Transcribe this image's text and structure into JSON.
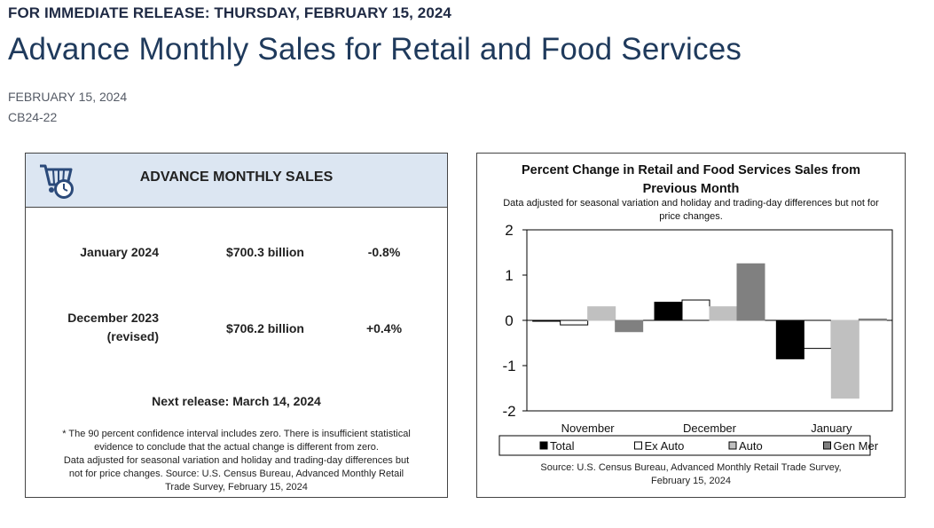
{
  "header": {
    "release_line": "FOR IMMEDIATE RELEASE: THURSDAY, FEBRUARY 15, 2024",
    "title": "Advance Monthly Sales for Retail and Food Services",
    "date": "FEBRUARY 15, 2024",
    "release_id": "CB24-22"
  },
  "sales_card": {
    "icon": "shopping-cart-clock-icon",
    "title": "ADVANCE MONTHLY SALES",
    "rows": [
      {
        "label_line1": "January 2024",
        "label_line2": "",
        "value": "$700.3 billion",
        "change": "-0.8%"
      },
      {
        "label_line1": "December 2023",
        "label_line2": "(revised)",
        "value": "$706.2 billion",
        "change": "+0.4%"
      }
    ],
    "next_release": "Next release: March 14, 2024",
    "footnote": [
      "* The 90 percent confidence interval includes zero. There is insufficient statistical",
      "evidence to conclude that the actual change is different from zero.",
      "Data adjusted for seasonal variation and holiday and trading-day differences but",
      "not for price changes. Source: U.S. Census Bureau, Advanced Monthly Retail",
      "Trade Survey, February 15, 2024"
    ]
  },
  "chart_card": {
    "title_line1": "Percent Change in Retail and Food Services Sales from",
    "title_line2": "Previous Month",
    "subtitle_line1": "Data adjusted for seasonal variation and holiday and trading-day differences but not for",
    "subtitle_line2": "price changes.",
    "source_line1": "Source: U.S. Census Bureau, Advanced Monthly Retail Trade Survey,",
    "source_line2": "February 15, 2024"
  },
  "chart_data": {
    "type": "bar",
    "title": "Percent Change in Retail and Food Services Sales from Previous Month",
    "categories": [
      "November",
      "December",
      "January"
    ],
    "ylim": [
      -2,
      2
    ],
    "yticks": [
      "2",
      "1",
      "0",
      "-1",
      "-2"
    ],
    "ytick_values": [
      2,
      1,
      0,
      -1,
      -2
    ],
    "series": [
      {
        "name": "Total",
        "color": "#000000",
        "values": [
          -0.02,
          0.4,
          -0.85
        ]
      },
      {
        "name": "Ex Auto",
        "color": "#ffffff",
        "values": [
          -0.1,
          0.45,
          -0.62
        ]
      },
      {
        "name": "Auto",
        "color": "#c0c0c0",
        "values": [
          0.3,
          0.3,
          -1.72
        ]
      },
      {
        "name": "Gen Mer",
        "color": "#808080",
        "values": [
          -0.25,
          1.25,
          0.03
        ]
      }
    ],
    "legend": "bottom"
  }
}
